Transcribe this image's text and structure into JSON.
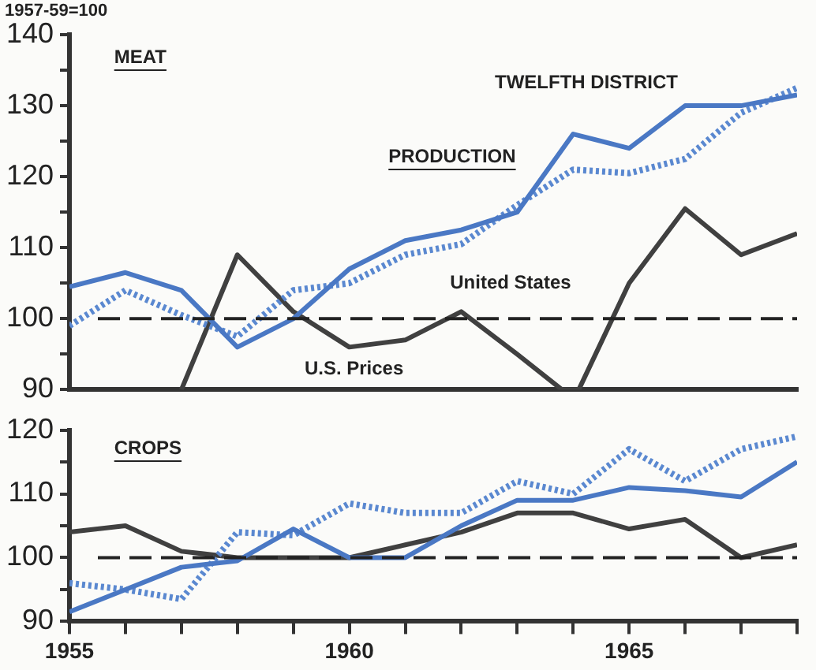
{
  "chart_data": [
    {
      "type": "line",
      "ylabel": "1957-59=100",
      "annotations": [
        "MEAT",
        "PRODUCTION"
      ],
      "x": [
        1955,
        1956,
        1957,
        1958,
        1959,
        1960,
        1961,
        1962,
        1963,
        1964,
        1965,
        1966,
        1967,
        1968
      ],
      "xlim": [
        1955,
        1968
      ],
      "ylim": [
        90,
        140
      ],
      "yticks": [
        90,
        {
          "value": 95,
          "label": null
        },
        100,
        {
          "value": 105,
          "label": null
        },
        110,
        {
          "value": 115,
          "label": null
        },
        120,
        {
          "value": 125,
          "label": null
        },
        130,
        {
          "value": 135,
          "label": null
        },
        140
      ],
      "tick_labels": "y",
      "grid": false,
      "legend": false,
      "marker": "none",
      "ref_lines": [
        {
          "axis": "y",
          "value": 100,
          "line_style": "dashed",
          "color": "#222222"
        }
      ],
      "series": [
        {
          "name": "TWELFTH DISTRICT",
          "color": "#4a78c4",
          "line_style": "solid",
          "values": [
            104.5,
            106.5,
            104,
            96,
            100,
            107,
            111,
            112.5,
            115,
            126,
            124,
            130,
            130,
            131.5
          ]
        },
        {
          "name": "United States",
          "color": "#5a88d0",
          "line_style": "dotted",
          "values": [
            99,
            104,
            100.5,
            97.5,
            104,
            105,
            109,
            110.5,
            116,
            121,
            120.5,
            122.5,
            129,
            132.5
          ]
        },
        {
          "name": "U.S. Prices",
          "color": "#404040",
          "line_style": "solid",
          "x": [
            1957,
            1958,
            1959,
            1960,
            1961,
            1962,
            1963,
            1963.8,
            1964.1,
            1965,
            1966,
            1967,
            1968
          ],
          "values": [
            90,
            109,
            101,
            96,
            97,
            101,
            95,
            90,
            90,
            105,
            115.5,
            109,
            112
          ]
        }
      ]
    },
    {
      "type": "line",
      "annotations": [
        "CROPS"
      ],
      "x": [
        1955,
        1956,
        1957,
        1958,
        1959,
        1960,
        1961,
        1962,
        1963,
        1964,
        1965,
        1966,
        1967,
        1968
      ],
      "xlim": [
        1955,
        1968
      ],
      "ylim": [
        90,
        120
      ],
      "xticks": [
        1955,
        {
          "value": 1956,
          "label": null
        },
        {
          "value": 1957,
          "label": null
        },
        {
          "value": 1958,
          "label": null
        },
        {
          "value": 1959,
          "label": null
        },
        1960,
        {
          "value": 1961,
          "label": null
        },
        {
          "value": 1962,
          "label": null
        },
        {
          "value": 1963,
          "label": null
        },
        {
          "value": 1964,
          "label": null
        },
        1965,
        {
          "value": 1966,
          "label": null
        },
        {
          "value": 1967,
          "label": null
        },
        {
          "value": 1968,
          "label": null
        }
      ],
      "yticks": [
        90,
        {
          "value": 95,
          "label": null
        },
        100,
        {
          "value": 105,
          "label": null
        },
        110,
        {
          "value": 115,
          "label": null
        },
        120
      ],
      "grid": false,
      "legend": false,
      "marker": "none",
      "ref_lines": [
        {
          "axis": "y",
          "value": 100,
          "line_style": "dashed",
          "color": "#222222"
        }
      ],
      "series": [
        {
          "color": "#4a78c4",
          "line_style": "solid",
          "values": [
            91.5,
            95,
            98.5,
            99.5,
            104.5,
            100,
            100,
            105,
            109,
            109,
            111,
            110.5,
            109.5,
            115
          ]
        },
        {
          "color": "#5a88d0",
          "line_style": "dotted",
          "values": [
            96,
            95,
            93.5,
            104,
            103.5,
            108.5,
            107,
            107,
            112,
            110,
            117,
            112,
            117,
            119
          ]
        },
        {
          "color": "#404040",
          "line_style": "solid",
          "values": [
            104,
            105,
            101,
            100,
            100,
            100,
            102,
            104,
            107,
            107,
            104.5,
            106,
            100,
            102
          ]
        }
      ]
    }
  ]
}
